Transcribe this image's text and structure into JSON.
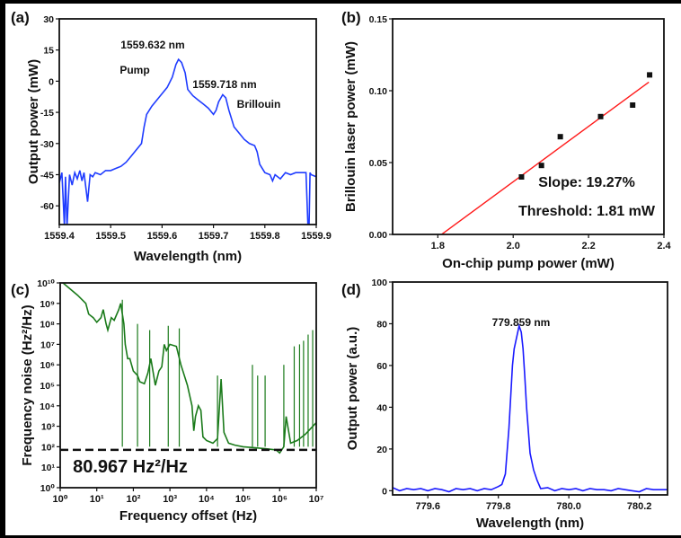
{
  "chart_data": [
    {
      "panel_label": "(a)",
      "type": "line",
      "xlabel": "Wavelength (nm)",
      "ylabel": "Output power (mW)",
      "xlim": [
        1559.4,
        1559.9
      ],
      "ylim": [
        -69,
        30
      ],
      "xticks": [
        1559.4,
        1559.5,
        1559.6,
        1559.7,
        1559.8,
        1559.9
      ],
      "xtick_labels": [
        "1559.4",
        "1559.5",
        "1559.6",
        "1559.7",
        "1559.8",
        "1559.9"
      ],
      "yticks": [
        30,
        15,
        0,
        -15,
        -30,
        -45,
        -60
      ],
      "ytick_labels": [
        "30",
        "15",
        "0",
        "-15",
        "-30",
        "-45",
        "-60"
      ],
      "color": "#1f3cff",
      "x": [
        1559.4,
        1559.405,
        1559.41,
        1559.412,
        1559.415,
        1559.42,
        1559.425,
        1559.43,
        1559.435,
        1559.44,
        1559.444,
        1559.448,
        1559.455,
        1559.46,
        1559.465,
        1559.47,
        1559.48,
        1559.49,
        1559.5,
        1559.51,
        1559.52,
        1559.53,
        1559.54,
        1559.55,
        1559.56,
        1559.565,
        1559.57,
        1559.58,
        1559.59,
        1559.6,
        1559.61,
        1559.62,
        1559.627,
        1559.632,
        1559.638,
        1559.645,
        1559.65,
        1559.66,
        1559.67,
        1559.68,
        1559.69,
        1559.7,
        1559.705,
        1559.71,
        1559.718,
        1559.724,
        1559.73,
        1559.74,
        1559.75,
        1559.76,
        1559.77,
        1559.78,
        1559.785,
        1559.79,
        1559.8,
        1559.81,
        1559.815,
        1559.82,
        1559.83,
        1559.84,
        1559.85,
        1559.86,
        1559.87,
        1559.88,
        1559.884,
        1559.886,
        1559.888,
        1559.89,
        1559.9
      ],
      "y": [
        -49,
        -44,
        -70,
        -46,
        -70,
        -45,
        -50,
        -44,
        -47,
        -43,
        -48,
        -44,
        -58,
        -45,
        -46,
        -44,
        -45,
        -43,
        -43,
        -42,
        -41,
        -39,
        -36,
        -33,
        -30,
        -22,
        -16,
        -12,
        -9,
        -6,
        -3,
        2,
        8,
        10.5,
        9,
        4,
        -4,
        -7,
        -9,
        -11,
        -13,
        -16,
        -14,
        -10,
        -6.5,
        -8,
        -14,
        -22,
        -25,
        -28,
        -30,
        -31,
        -34,
        -40,
        -44,
        -45,
        -48,
        -45,
        -47,
        -44,
        -45,
        -44,
        -44,
        -44,
        -70,
        -70,
        -44,
        -45,
        -46
      ],
      "annotations": [
        "1559.632 nm",
        "Pump",
        "1559.718 nm",
        "Brillouin"
      ]
    },
    {
      "panel_label": "(b)",
      "type": "scatter",
      "xlabel": "On-chip pump power (mW)",
      "ylabel": "Brillouin laser power (mW)",
      "xlim": [
        1.68,
        2.4
      ],
      "ylim": [
        0,
        0.15
      ],
      "xticks": [
        1.8,
        2.0,
        2.2,
        2.4
      ],
      "xtick_labels": [
        "1.8",
        "2.0",
        "2.2",
        "2.4"
      ],
      "yticks": [
        0,
        0.05,
        0.1,
        0.15
      ],
      "ytick_labels": [
        "0.00",
        "0.05",
        "0.10",
        "0.15"
      ],
      "points": {
        "x": [
          2.022,
          2.075,
          2.125,
          2.232,
          2.317,
          2.362
        ],
        "y": [
          0.04,
          0.048,
          0.068,
          0.082,
          0.09,
          0.111
        ]
      },
      "fit": {
        "x": [
          1.81,
          2.36
        ],
        "y": [
          0,
          0.106
        ],
        "color": "#ff1a1a"
      },
      "annotations": [
        "Slope: 19.27%",
        "Threshold: 1.81 mW"
      ],
      "annotation_color": "#1a1aff"
    },
    {
      "panel_label": "(c)",
      "type": "line",
      "xlabel": "Frequency offset (Hz)",
      "ylabel": "Frequency noise (Hz²/Hz)",
      "xscale": "log",
      "yscale": "log",
      "xlim": [
        1,
        10000000.0
      ],
      "ylim": [
        1,
        10000000000.0
      ],
      "xticks": [
        1,
        10,
        100,
        1000,
        10000.0,
        100000.0,
        1000000.0,
        10000000.0
      ],
      "xtick_labels": [
        "10⁰",
        "10¹",
        "10²",
        "10³",
        "10⁴",
        "10⁵",
        "10⁶",
        "10⁷"
      ],
      "yticks": [
        1,
        10,
        100,
        1000,
        10000.0,
        100000.0,
        1000000.0,
        10000000.0,
        100000000.0,
        1000000000.0,
        10000000000.0
      ],
      "ytick_labels": [
        "10⁰",
        "10¹",
        "10²",
        "10³",
        "10⁴",
        "10⁵",
        "10⁶",
        "10⁷",
        "10⁸",
        "10⁹",
        "10¹⁰"
      ],
      "color": "#1a7a1a",
      "x": [
        1,
        3,
        5,
        6,
        8,
        10,
        13,
        15,
        18,
        20,
        25,
        30,
        40,
        45,
        50,
        55,
        60,
        70,
        80,
        100,
        130,
        150,
        200,
        250,
        300,
        400,
        500,
        600,
        700,
        800,
        1000,
        1500,
        2000,
        3000,
        4000,
        4500,
        5000,
        6000,
        7000,
        8000,
        10000,
        15000,
        20000,
        25000,
        30000,
        40000,
        60000,
        100000,
        200000,
        400000,
        800000,
        1000000,
        1300000,
        1500000,
        2000000,
        3000000,
        5000000,
        10000000
      ],
      "y": [
        13000000000.0,
        2500000000.0,
        1000000000.0,
        300000000.0,
        200000000.0,
        120000000.0,
        200000000.0,
        500000000.0,
        100000000.0,
        50000000.0,
        200000000.0,
        150000000.0,
        500000000.0,
        1000000000.0,
        300000000.0,
        100000000.0,
        10000000.0,
        2000000.0,
        2000000.0,
        500000.0,
        300000.0,
        150000.0,
        120000.0,
        400000.0,
        2000000.0,
        100000.0,
        500000.0,
        800000.0,
        10000000.0,
        5000000.0,
        10000000.0,
        8000000.0,
        1000000.0,
        100000.0,
        10000.0,
        600,
        3000,
        10000.0,
        6000,
        300,
        200,
        150,
        250,
        200000.0,
        500,
        150,
        120,
        100,
        90,
        80,
        70,
        50,
        100,
        3000,
        150,
        200,
        400,
        1500
      ],
      "spikes": {
        "x": [
          50,
          130,
          280,
          900,
          1800,
          20000,
          180000,
          250000,
          400000,
          1300000,
          2500000,
          3500000,
          4500000,
          6000000,
          8000000,
          10000000
        ],
        "y": [
          1500000000.0,
          100000000.0,
          50000000.0,
          80000000.0,
          60000000.0,
          300000.0,
          1000000.0,
          300000.0,
          300000.0,
          1000000.0,
          8000000.0,
          10000000.0,
          15000000.0,
          30000000.0,
          50000000.0,
          70000000.0
        ]
      },
      "reference_level": 70,
      "reference_style": "dashed",
      "annotations": [
        "80.967 Hz²/Hz"
      ],
      "annotation_color": "#1a1aff"
    },
    {
      "panel_label": "(d)",
      "type": "line",
      "xlabel": "Wavelength (nm)",
      "ylabel": "Output power (a.u.)",
      "xlim": [
        779.5,
        780.28
      ],
      "ylim": [
        -2,
        100
      ],
      "xticks": [
        779.6,
        779.8,
        780.0,
        780.2
      ],
      "xtick_labels": [
        "779.6",
        "779.8",
        "780.0",
        "780.2"
      ],
      "yticks": [
        0,
        20,
        40,
        60,
        80,
        100
      ],
      "ytick_labels": [
        "0",
        "20",
        "40",
        "60",
        "80",
        "100"
      ],
      "color": "#1a1aff",
      "x": [
        779.5,
        779.52,
        779.54,
        779.56,
        779.58,
        779.6,
        779.62,
        779.64,
        779.66,
        779.68,
        779.7,
        779.72,
        779.74,
        779.76,
        779.78,
        779.8,
        779.81,
        779.82,
        779.83,
        779.84,
        779.845,
        779.85,
        779.855,
        779.859,
        779.865,
        779.87,
        779.875,
        779.88,
        779.89,
        779.9,
        779.91,
        779.92,
        779.94,
        779.96,
        779.98,
        780.0,
        780.02,
        780.04,
        780.06,
        780.08,
        780.1,
        780.12,
        780.14,
        780.16,
        780.18,
        780.2,
        780.22,
        780.24,
        780.26,
        780.28
      ],
      "y": [
        1.5,
        0,
        1,
        0.5,
        1,
        0,
        1,
        0.5,
        -0.5,
        1,
        0.5,
        1,
        0,
        1,
        0.5,
        2,
        3,
        8,
        30,
        60,
        68,
        72,
        76,
        79,
        76,
        68,
        55,
        40,
        18,
        10,
        5,
        1,
        1.5,
        0,
        1,
        0.5,
        1,
        0,
        1,
        0.5,
        0.5,
        0,
        1,
        0.5,
        0,
        -0.5,
        1,
        0.5,
        0.5,
        0.5
      ],
      "annotations": [
        "779.859 nm"
      ]
    }
  ]
}
